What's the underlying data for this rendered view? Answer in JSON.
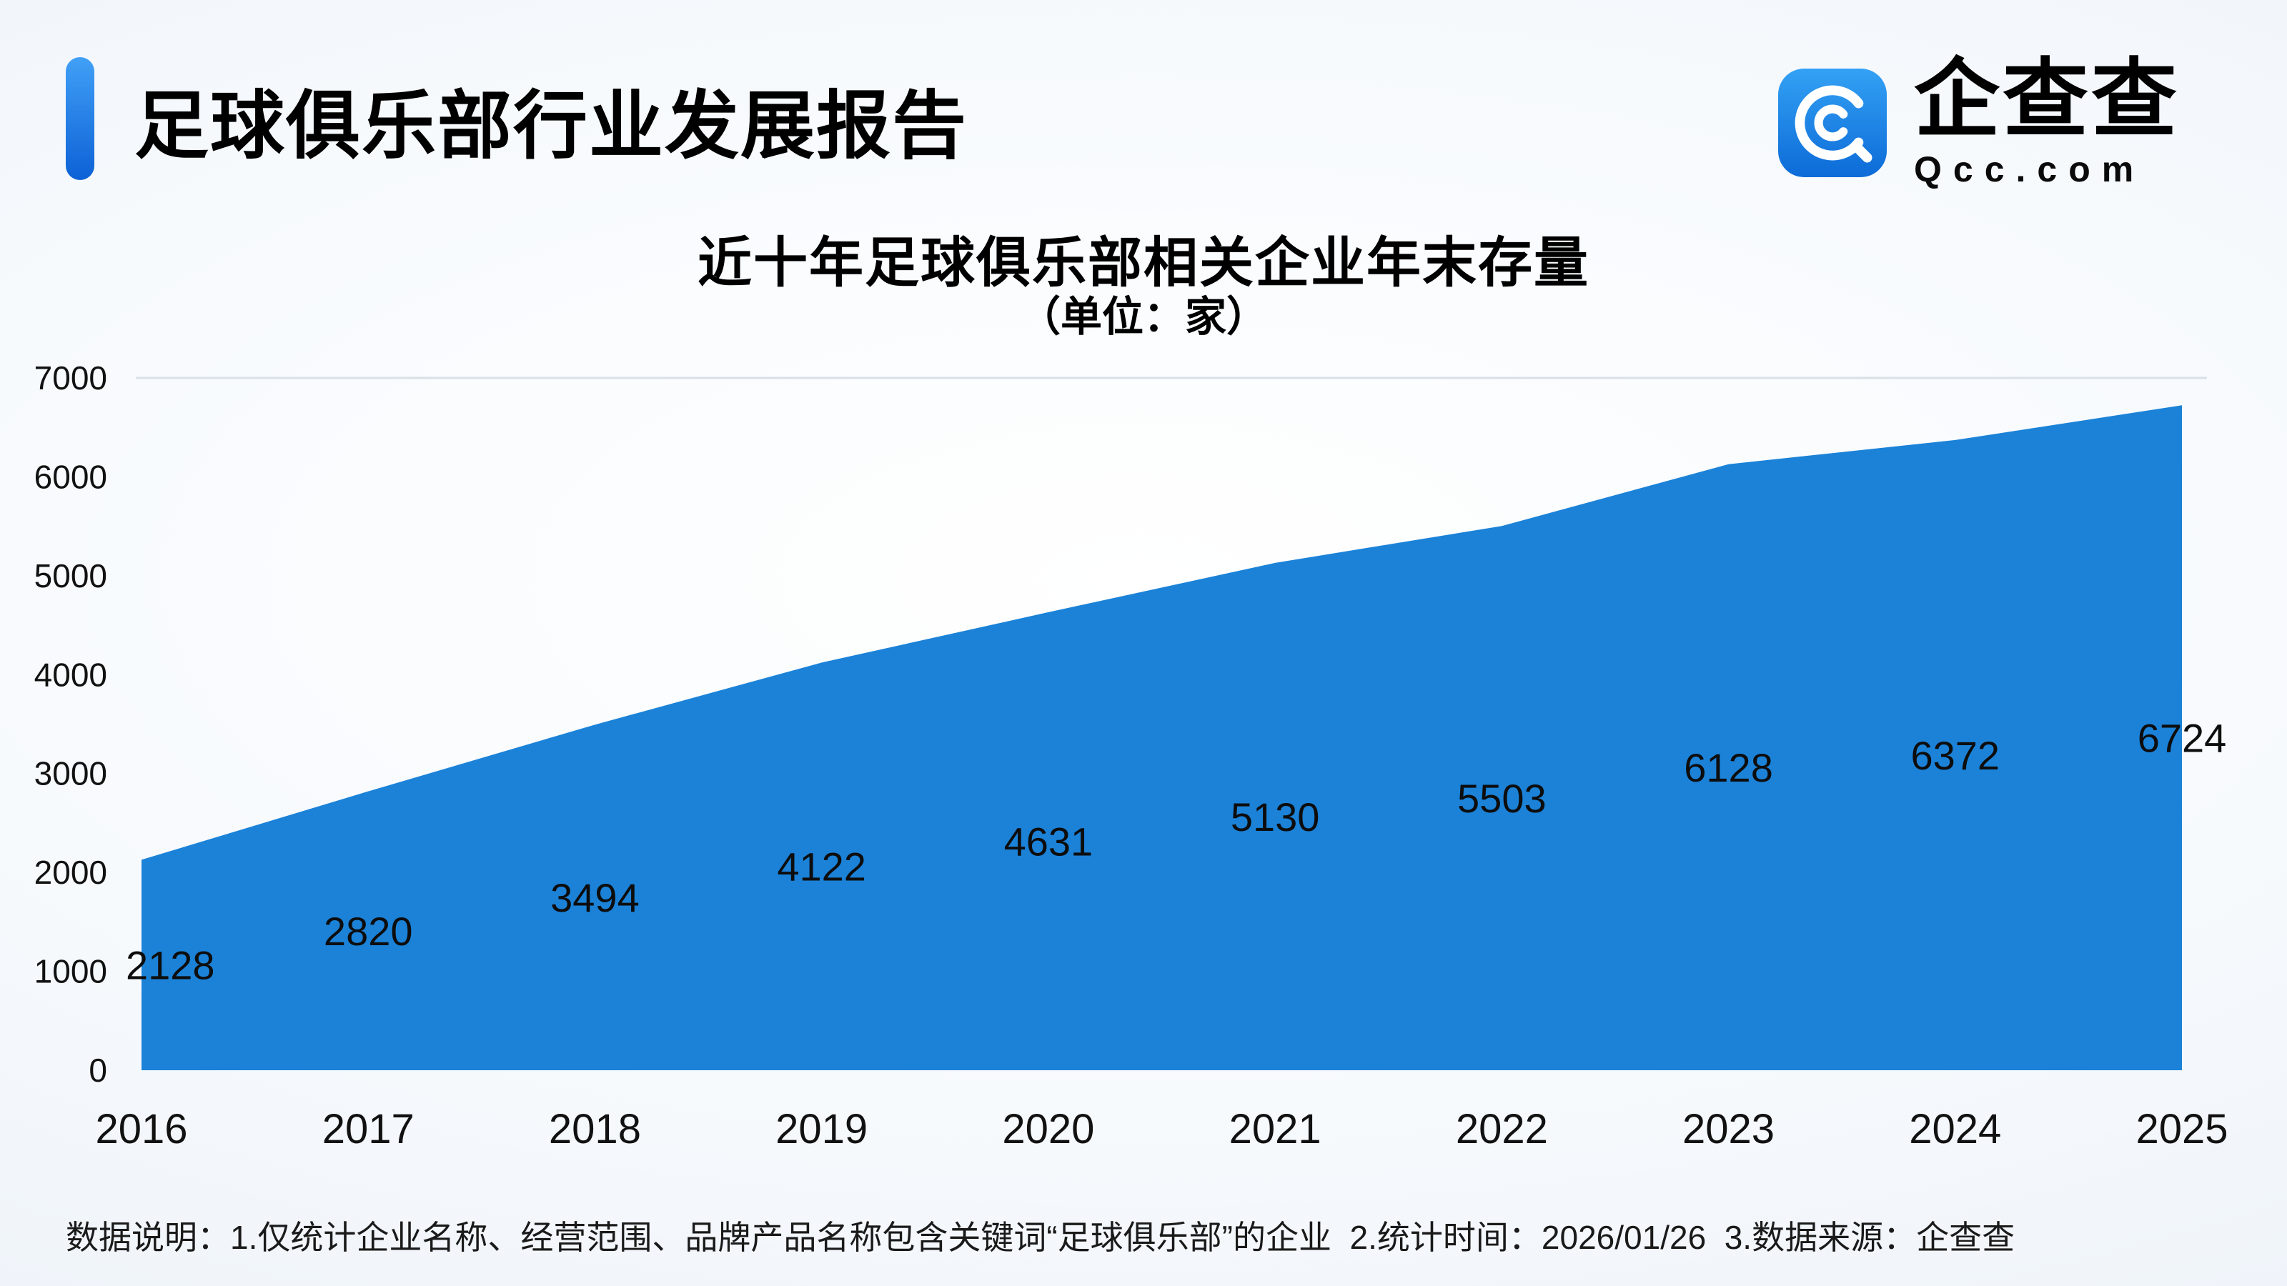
{
  "page": {
    "title": "足球俱乐部行业发展报告",
    "logo": {
      "brand": "企查查",
      "domain": "Qcc.com"
    }
  },
  "chart_data": {
    "type": "area",
    "title": "近十年足球俱乐部相关企业年末存量",
    "subtitle": "（单位：家）",
    "unit": "家",
    "categories": [
      "2016",
      "2017",
      "2018",
      "2019",
      "2020",
      "2021",
      "2022",
      "2023",
      "2024",
      "2025"
    ],
    "values": [
      2128,
      2820,
      3494,
      4122,
      4631,
      5130,
      5503,
      6128,
      6372,
      6724
    ],
    "ylim": [
      0,
      7000
    ],
    "yticks": [
      0,
      1000,
      2000,
      3000,
      4000,
      5000,
      6000,
      7000
    ],
    "area_color": "#1b82d8",
    "label_color": "#0d0d0d",
    "axis_text_color": "#111111",
    "grid": "top-line-only",
    "legend_position": "none"
  },
  "footer": {
    "note": "数据说明：1.仅统计企业名称、经营范围、品牌产品名称包含关键词“足球俱乐部”的企业  2.统计时间：2026/01/26  3.数据来源：企查查"
  }
}
